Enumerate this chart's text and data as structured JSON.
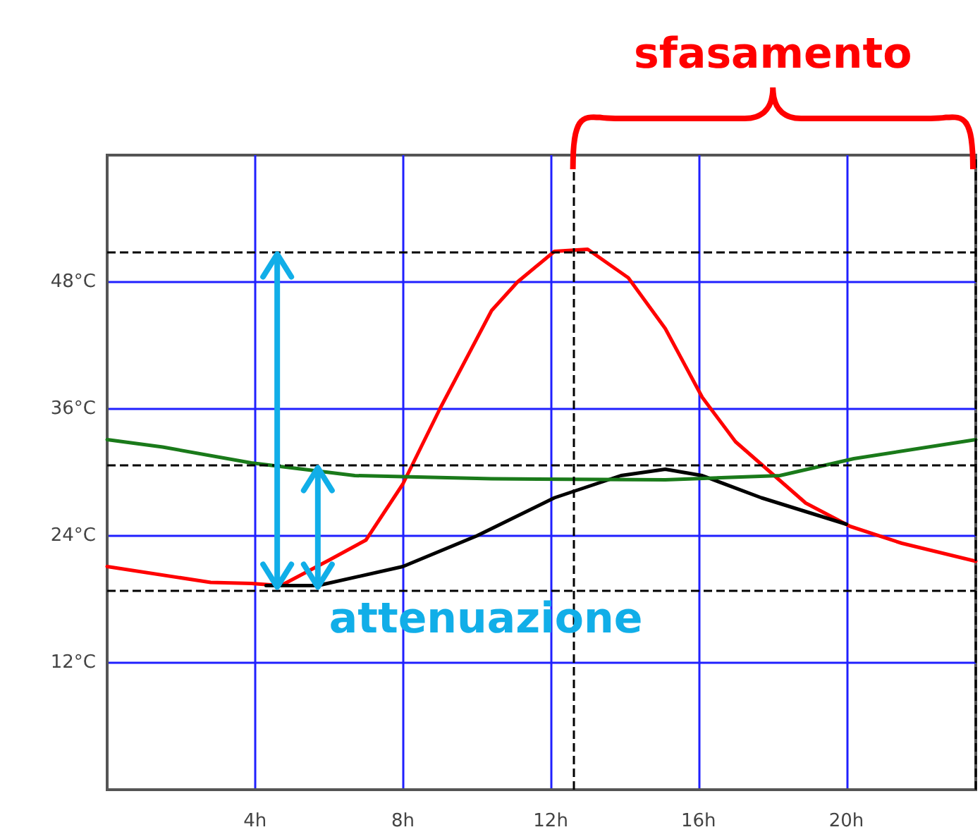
{
  "chart_data": {
    "type": "line",
    "annotations": [
      "sfasamento",
      {
        "text": "attenuazione",
        "x": 5.7,
        "y": 18.9
      }
    ],
    "xlim": [
      0,
      23.5
    ],
    "xticks": [
      {
        "value": 4,
        "label": "4h"
      },
      {
        "value": 8,
        "label": "8h"
      },
      {
        "value": 12,
        "label": "12h"
      },
      {
        "value": 16,
        "label": "16h"
      },
      {
        "value": 20,
        "label": "20h"
      }
    ],
    "ylim": [
      0,
      60
    ],
    "yticks": [
      {
        "value": 12,
        "label": "12°C"
      },
      {
        "value": 24,
        "label": "24°C"
      },
      {
        "value": 36,
        "label": "36°C"
      },
      {
        "value": 48,
        "label": "48°C"
      }
    ],
    "series": [
      {
        "color": "#ff0000",
        "x": [
          0,
          2.8,
          3.9,
          4.7,
          6.0,
          7.0,
          8.0,
          9.0,
          10.4,
          11.1,
          12.1,
          13.0,
          14.1,
          15.1,
          16.1,
          17.0,
          18.9,
          20.1,
          21.5,
          23.5
        ],
        "values": [
          21.1,
          19.6,
          19.5,
          19.3,
          21.7,
          23.6,
          28.9,
          36,
          45.3,
          48,
          50.9,
          51.1,
          48.4,
          43.6,
          37.1,
          32.9,
          27.1,
          24.9,
          23.3,
          21.6
        ]
      },
      {
        "color": "#000000",
        "x": [
          4.3,
          5.7,
          8.0,
          10.0,
          12.1,
          13.9,
          15.1,
          16.1,
          17.7,
          20.0
        ],
        "values": [
          19.3,
          19.3,
          21.1,
          24,
          27.6,
          29.7,
          30.3,
          29.7,
          27.6,
          25.1
        ]
      },
      {
        "color": "#1a7a1a",
        "x": [
          0,
          1.5,
          3.9,
          6.7,
          10.4,
          15.1,
          18.2,
          20.2,
          23.5
        ],
        "values": [
          33.1,
          32.4,
          30.9,
          29.7,
          29.4,
          29.3,
          29.7,
          31.3,
          33.1
        ]
      }
    ],
    "ref_lines": [
      {
        "axis": "y",
        "value": 50.9,
        "label": null,
        "color": "#000000",
        "line_style": "dashed"
      },
      {
        "axis": "y",
        "value": 30.7,
        "label": null,
        "color": "#000000",
        "line_style": "dashed"
      },
      {
        "axis": "y",
        "value": 18.9,
        "label": null,
        "color": "#000000",
        "line_style": "dashed"
      },
      {
        "axis": "x",
        "value": 12.6,
        "label": null,
        "color": "#000000",
        "line_style": "dashed"
      },
      {
        "axis": "x",
        "value": 23.5,
        "label": null,
        "color": "#000000",
        "line_style": "dashed"
      }
    ],
    "grid": true,
    "marker": "none",
    "line_style": "solid"
  }
}
